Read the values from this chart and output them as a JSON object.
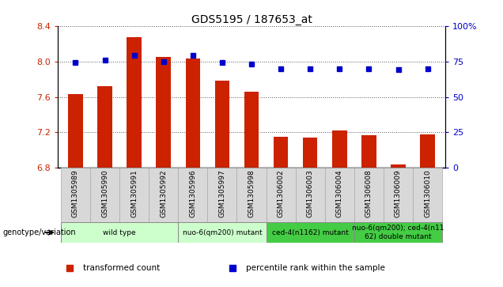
{
  "title": "GDS5195 / 187653_at",
  "samples": [
    "GSM1305989",
    "GSM1305990",
    "GSM1305991",
    "GSM1305992",
    "GSM1305996",
    "GSM1305997",
    "GSM1305998",
    "GSM1306002",
    "GSM1306003",
    "GSM1306004",
    "GSM1306008",
    "GSM1306009",
    "GSM1306010"
  ],
  "red_values": [
    7.63,
    7.72,
    8.27,
    8.05,
    8.03,
    7.78,
    7.66,
    7.15,
    7.14,
    7.22,
    7.17,
    6.84,
    7.18
  ],
  "blue_values": [
    74,
    76,
    79,
    75,
    79,
    74,
    73,
    70,
    70,
    70,
    70,
    69,
    70
  ],
  "ylim_left": [
    6.8,
    8.4
  ],
  "ylim_right": [
    0,
    100
  ],
  "yticks_left": [
    6.8,
    7.2,
    7.6,
    8.0,
    8.4
  ],
  "yticks_right": [
    0,
    25,
    50,
    75,
    100
  ],
  "ytick_labels_right": [
    "0",
    "25",
    "50",
    "75",
    "100%"
  ],
  "groups": [
    {
      "label": "wild type",
      "indices": [
        0,
        1,
        2,
        3
      ],
      "color": "#ccffcc"
    },
    {
      "label": "nuo-6(qm200) mutant",
      "indices": [
        4,
        5,
        6
      ],
      "color": "#ccffcc"
    },
    {
      "label": "ced-4(n1162) mutant",
      "indices": [
        7,
        8,
        9
      ],
      "color": "#44cc44"
    },
    {
      "label": "nuo-6(qm200); ced-4(n11\n62) double mutant",
      "indices": [
        10,
        11,
        12
      ],
      "color": "#44cc44"
    }
  ],
  "bar_color": "#cc2200",
  "dot_color": "#0000cc",
  "bg_color": "#ffffff",
  "xlabel_row": "genotype/variation",
  "legend_items": [
    {
      "color": "#cc2200",
      "label": "transformed count"
    },
    {
      "color": "#0000cc",
      "label": "percentile rank within the sample"
    }
  ],
  "base_value": 6.8,
  "sample_box_color": "#d8d8d8",
  "sample_box_edge": "#aaaaaa"
}
